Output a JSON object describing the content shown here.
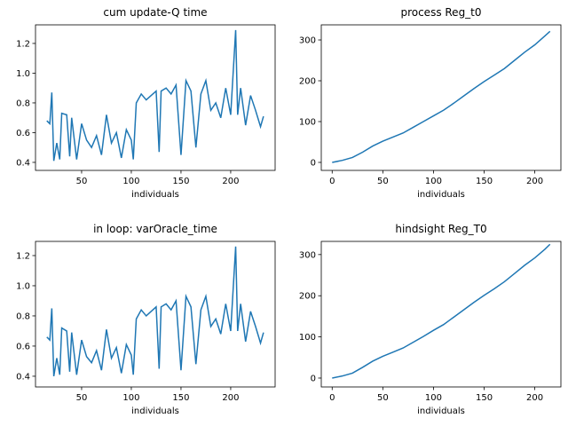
{
  "chart_data": [
    {
      "type": "line",
      "title": "cum update-Q time",
      "x_label": "individuals",
      "color": "#1f77b4",
      "x": [
        15,
        18,
        20,
        22,
        25,
        28,
        30,
        35,
        38,
        40,
        45,
        50,
        55,
        60,
        65,
        70,
        75,
        80,
        85,
        90,
        95,
        100,
        102,
        105,
        110,
        115,
        120,
        125,
        128,
        130,
        135,
        140,
        145,
        150,
        155,
        160,
        165,
        170,
        175,
        180,
        185,
        190,
        195,
        200,
        205,
        207,
        210,
        215,
        220,
        225,
        230,
        233
      ],
      "values": [
        0.68,
        0.66,
        0.87,
        0.41,
        0.53,
        0.42,
        0.73,
        0.72,
        0.44,
        0.7,
        0.42,
        0.66,
        0.55,
        0.5,
        0.58,
        0.45,
        0.72,
        0.53,
        0.6,
        0.43,
        0.62,
        0.55,
        0.42,
        0.8,
        0.86,
        0.82,
        0.85,
        0.88,
        0.47,
        0.88,
        0.9,
        0.86,
        0.92,
        0.45,
        0.95,
        0.88,
        0.5,
        0.86,
        0.95,
        0.75,
        0.8,
        0.7,
        0.9,
        0.72,
        1.29,
        0.72,
        0.9,
        0.65,
        0.85,
        0.75,
        0.64,
        0.71
      ],
      "xlim": [
        3.6,
        244.7
      ],
      "ylim": [
        0.346,
        1.325
      ],
      "xticks": [
        50,
        100,
        150,
        200
      ],
      "yticks": [
        0.4,
        0.6,
        0.8,
        {
          "value": 1.0,
          "label": "1.0"
        },
        1.2
      ]
    },
    {
      "type": "line",
      "title": "process Reg_t0",
      "x_label": "individuals",
      "color": "#1f77b4",
      "x": [
        0,
        10,
        20,
        30,
        40,
        50,
        60,
        70,
        80,
        90,
        100,
        110,
        120,
        130,
        140,
        150,
        160,
        170,
        180,
        190,
        200,
        210,
        215
      ],
      "values": [
        0,
        5,
        12,
        25,
        40,
        52,
        62,
        72,
        86,
        100,
        114,
        128,
        145,
        163,
        181,
        198,
        214,
        230,
        250,
        270,
        288,
        310,
        321
      ],
      "xlim": [
        -10.75,
        225.75
      ],
      "ylim": [
        -19.6,
        337
      ],
      "xticks": [
        0,
        50,
        100,
        150,
        200
      ],
      "yticks": [
        0,
        100,
        200,
        300
      ]
    },
    {
      "type": "line",
      "title": "in loop: varOracle_time",
      "x_label": "individuals",
      "color": "#1f77b4",
      "x": [
        15,
        18,
        20,
        22,
        25,
        28,
        30,
        35,
        38,
        40,
        45,
        50,
        55,
        60,
        65,
        70,
        75,
        80,
        85,
        90,
        95,
        100,
        102,
        105,
        110,
        115,
        120,
        125,
        128,
        130,
        135,
        140,
        145,
        150,
        155,
        160,
        165,
        170,
        175,
        180,
        185,
        190,
        195,
        200,
        205,
        207,
        210,
        215,
        220,
        225,
        230,
        233
      ],
      "values": [
        0.66,
        0.64,
        0.85,
        0.4,
        0.52,
        0.41,
        0.72,
        0.7,
        0.43,
        0.69,
        0.41,
        0.64,
        0.53,
        0.49,
        0.57,
        0.44,
        0.71,
        0.52,
        0.59,
        0.42,
        0.61,
        0.54,
        0.41,
        0.78,
        0.84,
        0.8,
        0.83,
        0.86,
        0.45,
        0.86,
        0.88,
        0.84,
        0.9,
        0.44,
        0.93,
        0.86,
        0.48,
        0.84,
        0.93,
        0.73,
        0.78,
        0.68,
        0.88,
        0.7,
        1.26,
        0.7,
        0.88,
        0.63,
        0.83,
        0.73,
        0.62,
        0.69
      ],
      "xlim": [
        3.6,
        244.7
      ],
      "ylim": [
        0.329,
        1.294
      ],
      "xticks": [
        50,
        100,
        150,
        200
      ],
      "yticks": [
        0.4,
        0.6,
        0.8,
        {
          "value": 1.0,
          "label": "1.0"
        },
        1.2
      ]
    },
    {
      "type": "line",
      "title": "hindsight Reg_T0",
      "x_label": "individuals",
      "color": "#1f77b4",
      "x": [
        0,
        10,
        20,
        30,
        40,
        50,
        60,
        70,
        80,
        90,
        100,
        110,
        120,
        130,
        140,
        150,
        160,
        170,
        180,
        190,
        200,
        210,
        215
      ],
      "values": [
        0,
        5,
        12,
        26,
        41,
        53,
        63,
        73,
        87,
        101,
        116,
        130,
        148,
        166,
        184,
        201,
        217,
        234,
        254,
        274,
        292,
        313,
        325
      ],
      "xlim": [
        -10.75,
        225.75
      ],
      "ylim": [
        -21.6,
        332
      ],
      "xticks": [
        0,
        50,
        100,
        150,
        200
      ],
      "yticks": [
        0,
        100,
        200,
        300
      ]
    }
  ]
}
